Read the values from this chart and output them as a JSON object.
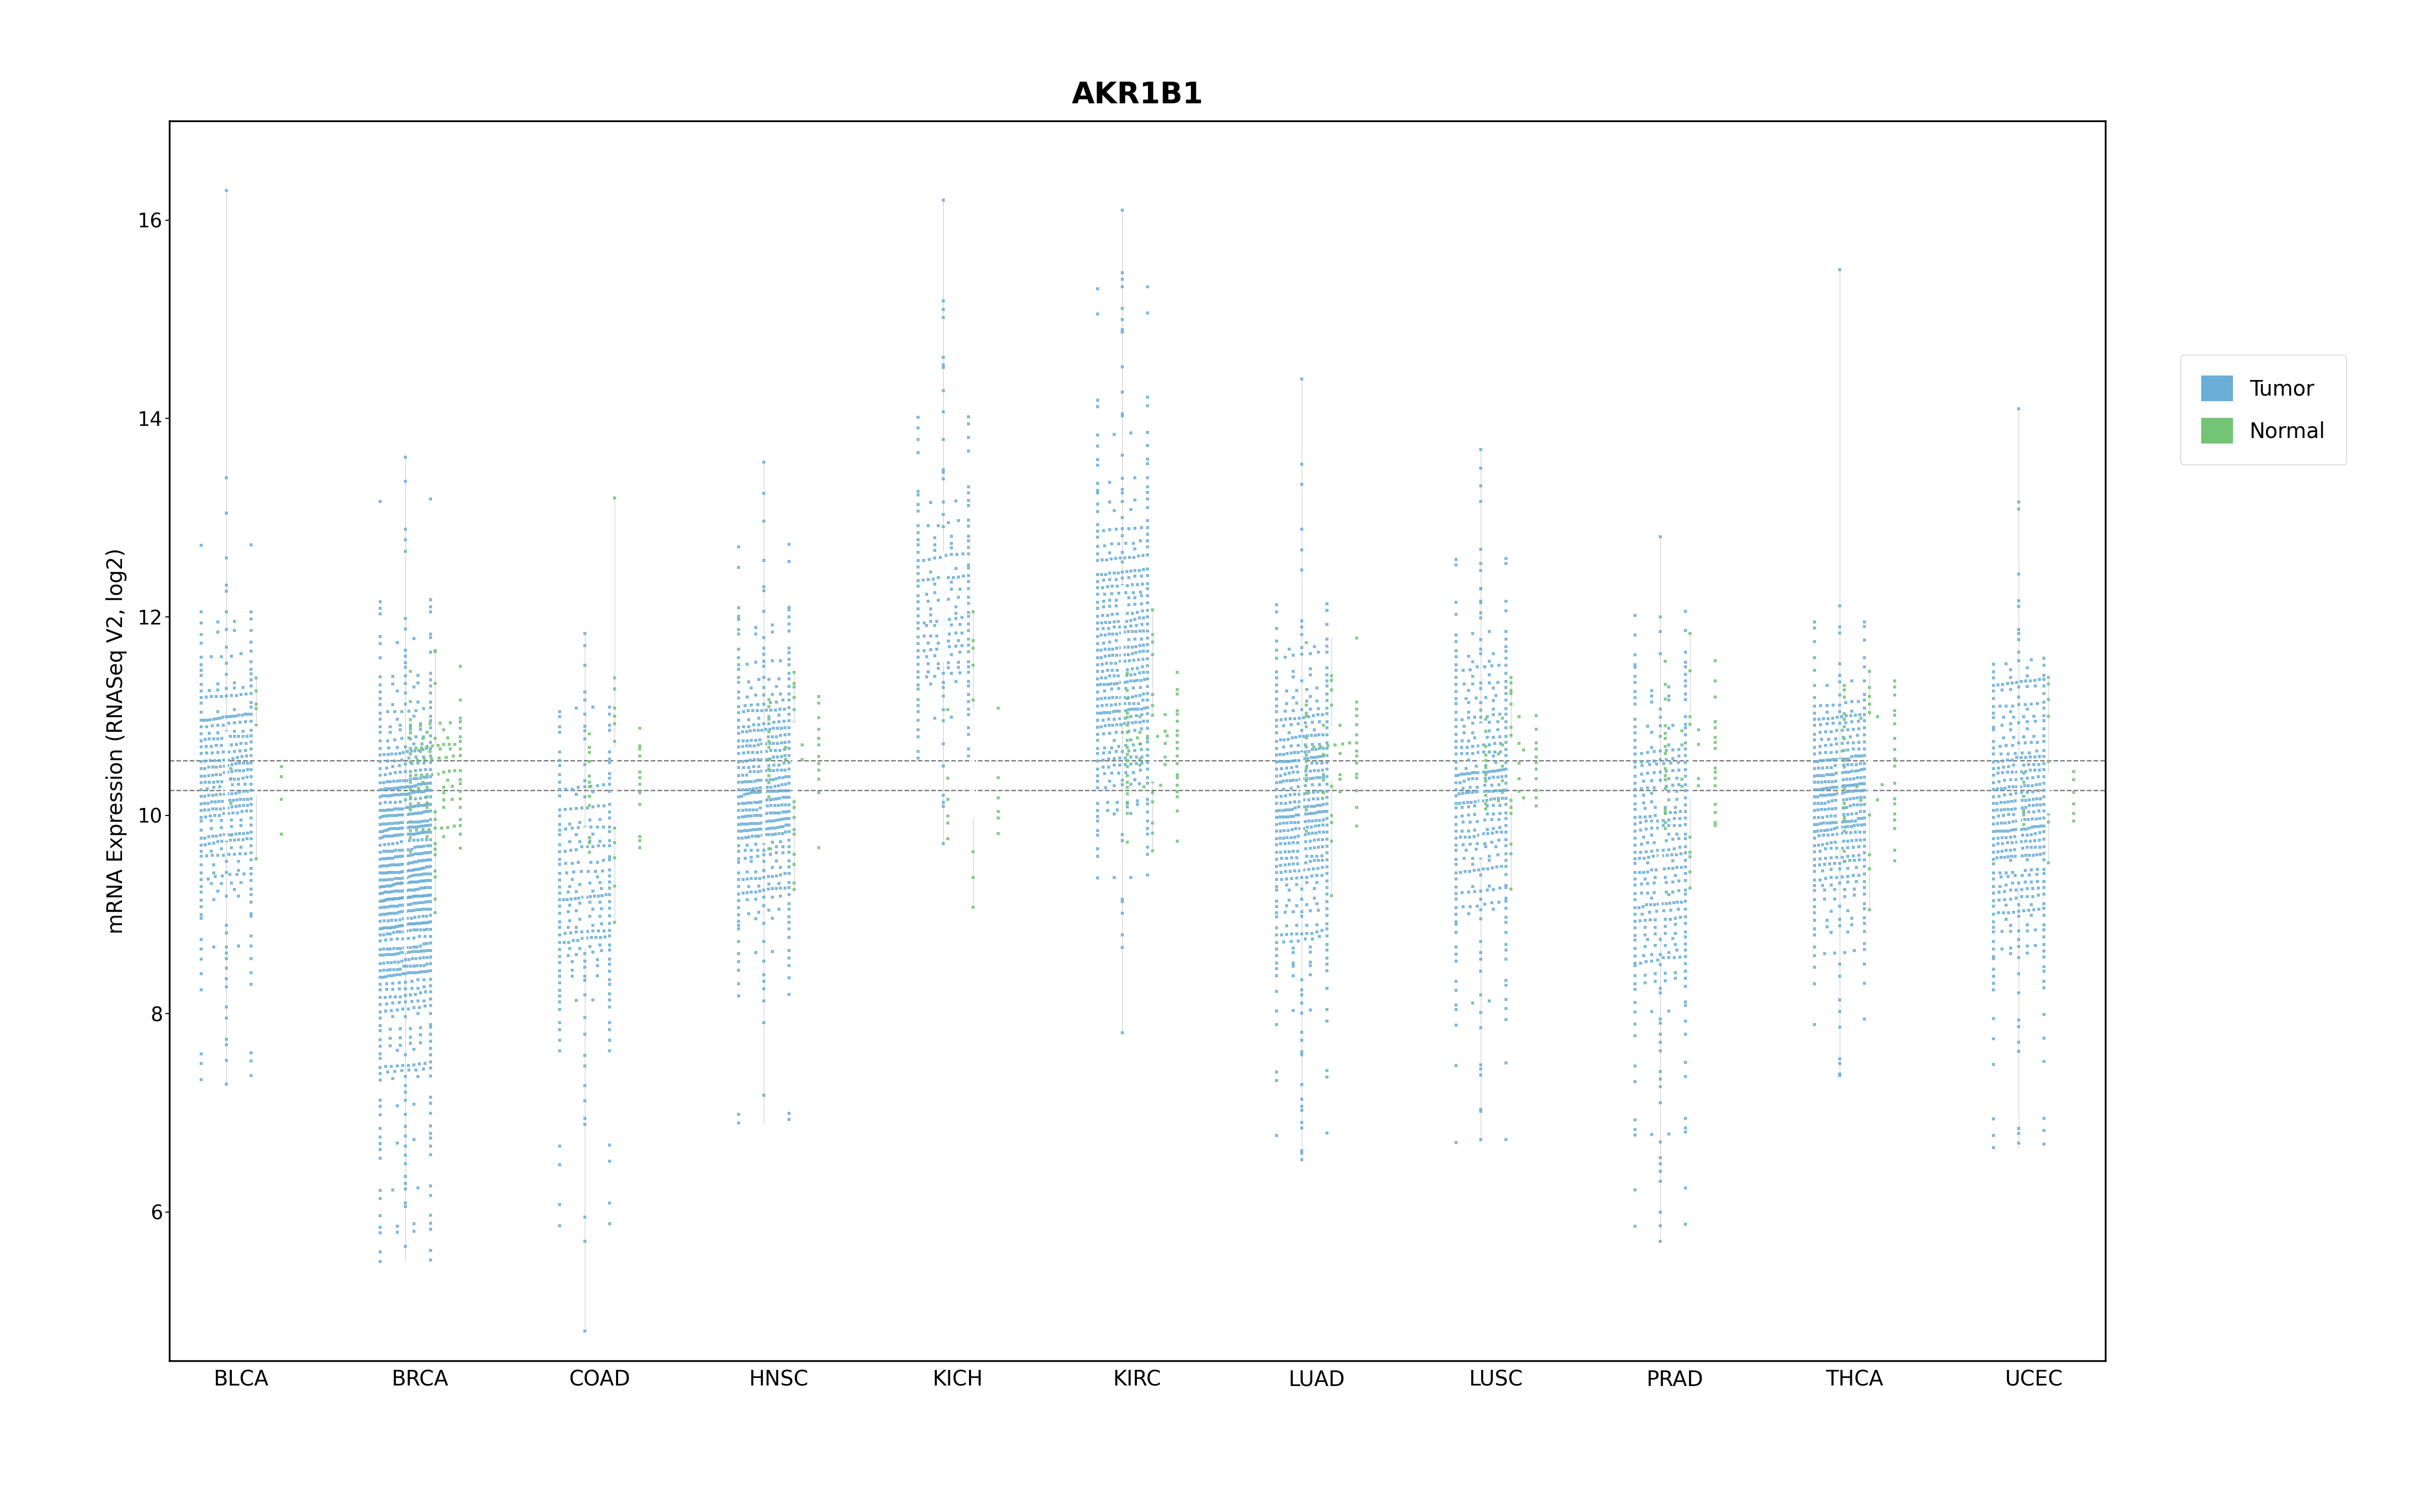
{
  "title": "AKR1B1",
  "ylabel": "mRNA Expression (RNASeq V2, log2)",
  "categories": [
    "BLCA",
    "BRCA",
    "COAD",
    "HNSC",
    "KICH",
    "KIRC",
    "LUAD",
    "LUSC",
    "PRAD",
    "THCA",
    "UCEC"
  ],
  "tumor_color": "#6baed6",
  "normal_color": "#74c476",
  "hline1": 10.25,
  "hline2": 10.55,
  "ylim": [
    4.5,
    17.0
  ],
  "yticks": [
    6,
    8,
    10,
    12,
    14,
    16
  ],
  "legend_labels": [
    "Tumor",
    "Normal"
  ]
}
